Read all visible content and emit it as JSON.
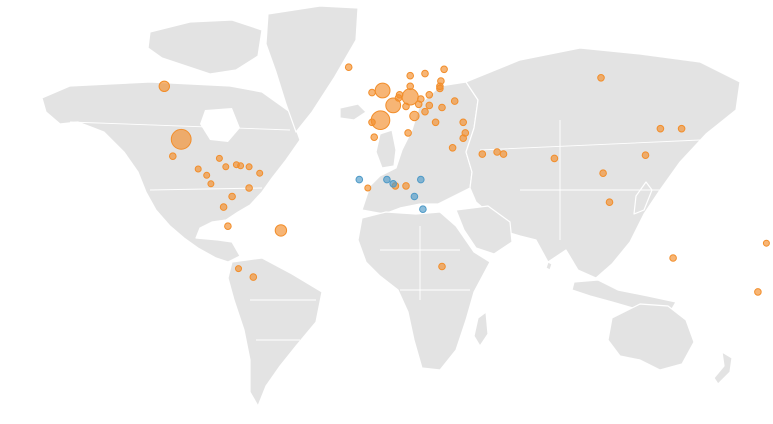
{
  "map": {
    "projection": "equirectangular",
    "background_color": "#ffffff",
    "land_color": "#e3e3e3",
    "border_color": "#ffffff"
  },
  "legend": {
    "series": [
      {
        "key": "orange",
        "color": "#f28e2b"
      },
      {
        "key": "blue",
        "color": "#4e9ac7"
      }
    ]
  },
  "chart_data": {
    "type": "bubble-map",
    "points": [
      {
        "lon": -98,
        "lat": 31,
        "size": 9,
        "series": "orange"
      },
      {
        "lon": -106,
        "lat": 56,
        "size": 2.5,
        "series": "orange"
      },
      {
        "lon": -102,
        "lat": 23,
        "size": 1,
        "series": "orange"
      },
      {
        "lon": -90,
        "lat": 17,
        "size": 0.8,
        "series": "orange"
      },
      {
        "lon": -86,
        "lat": 14,
        "size": 0.8,
        "series": "orange"
      },
      {
        "lon": -84,
        "lat": 10,
        "size": 0.8,
        "series": "orange"
      },
      {
        "lon": -80,
        "lat": 22,
        "size": 0.8,
        "series": "orange"
      },
      {
        "lon": -77,
        "lat": 18,
        "size": 0.8,
        "series": "orange"
      },
      {
        "lon": -72,
        "lat": 19,
        "size": 0.8,
        "series": "orange"
      },
      {
        "lon": -70,
        "lat": 18.5,
        "size": 0.8,
        "series": "orange"
      },
      {
        "lon": -66,
        "lat": 18,
        "size": 0.8,
        "series": "orange"
      },
      {
        "lon": -61,
        "lat": 15,
        "size": 0.8,
        "series": "orange"
      },
      {
        "lon": -74,
        "lat": 4,
        "size": 1,
        "series": "orange"
      },
      {
        "lon": -66,
        "lat": 8,
        "size": 1,
        "series": "orange"
      },
      {
        "lon": -78,
        "lat": -1,
        "size": 1,
        "series": "orange"
      },
      {
        "lon": -76,
        "lat": -10,
        "size": 1,
        "series": "orange"
      },
      {
        "lon": -51,
        "lat": -12,
        "size": 3,
        "series": "orange"
      },
      {
        "lon": -64,
        "lat": -34,
        "size": 1,
        "series": "orange"
      },
      {
        "lon": -71,
        "lat": -30,
        "size": 0.8,
        "series": "orange"
      },
      {
        "lon": -3,
        "lat": 54,
        "size": 5,
        "series": "orange"
      },
      {
        "lon": -8,
        "lat": 53,
        "size": 1,
        "series": "orange"
      },
      {
        "lon": 2,
        "lat": 47,
        "size": 5,
        "series": "orange"
      },
      {
        "lon": 10,
        "lat": 51,
        "size": 6,
        "series": "orange"
      },
      {
        "lon": -4,
        "lat": 40,
        "size": 8,
        "series": "orange"
      },
      {
        "lon": -8,
        "lat": 39,
        "size": 1,
        "series": "orange"
      },
      {
        "lon": 12,
        "lat": 42,
        "size": 2,
        "series": "orange"
      },
      {
        "lon": 5,
        "lat": 52,
        "size": 1,
        "series": "orange"
      },
      {
        "lon": 4.5,
        "lat": 50.5,
        "size": 1,
        "series": "orange"
      },
      {
        "lon": 8,
        "lat": 46.5,
        "size": 1,
        "series": "orange"
      },
      {
        "lon": 14,
        "lat": 47.5,
        "size": 1,
        "series": "orange"
      },
      {
        "lon": 19,
        "lat": 52,
        "size": 1,
        "series": "orange"
      },
      {
        "lon": 15,
        "lat": 50,
        "size": 1,
        "series": "orange"
      },
      {
        "lon": 19,
        "lat": 47,
        "size": 1,
        "series": "orange"
      },
      {
        "lon": 25,
        "lat": 46,
        "size": 1,
        "series": "orange"
      },
      {
        "lon": 22,
        "lat": 39,
        "size": 1,
        "series": "orange"
      },
      {
        "lon": 35,
        "lat": 39,
        "size": 1,
        "series": "orange"
      },
      {
        "lon": 31,
        "lat": 49,
        "size": 1,
        "series": "orange"
      },
      {
        "lon": 17,
        "lat": 44,
        "size": 1,
        "series": "orange"
      },
      {
        "lon": 10,
        "lat": 56,
        "size": 1,
        "series": "orange"
      },
      {
        "lon": 10,
        "lat": 61,
        "size": 1,
        "series": "orange"
      },
      {
        "lon": 17,
        "lat": 62,
        "size": 1,
        "series": "orange"
      },
      {
        "lon": 26,
        "lat": 64,
        "size": 1,
        "series": "orange"
      },
      {
        "lon": 24,
        "lat": 56,
        "size": 1,
        "series": "orange"
      },
      {
        "lon": 24.5,
        "lat": 58.5,
        "size": 1,
        "series": "orange"
      },
      {
        "lon": 24,
        "lat": 55,
        "size": 1,
        "series": "orange"
      },
      {
        "lon": -19,
        "lat": 65,
        "size": 1,
        "series": "orange"
      },
      {
        "lon": 9,
        "lat": 34,
        "size": 1,
        "series": "orange"
      },
      {
        "lon": -7,
        "lat": 32,
        "size": 1,
        "series": "orange"
      },
      {
        "lon": 30,
        "lat": 27,
        "size": 1,
        "series": "orange"
      },
      {
        "lon": 35,
        "lat": 31.5,
        "size": 1,
        "series": "orange"
      },
      {
        "lon": 36,
        "lat": 34,
        "size": 1,
        "series": "orange"
      },
      {
        "lon": 44,
        "lat": 24,
        "size": 1,
        "series": "orange"
      },
      {
        "lon": 51,
        "lat": 25,
        "size": 1,
        "series": "orange"
      },
      {
        "lon": 54,
        "lat": 24,
        "size": 1,
        "series": "orange"
      },
      {
        "lon": 78,
        "lat": 22,
        "size": 1,
        "series": "orange"
      },
      {
        "lon": 101,
        "lat": 15,
        "size": 1,
        "series": "orange"
      },
      {
        "lon": 104,
        "lat": 1.3,
        "size": 1,
        "series": "orange"
      },
      {
        "lon": 121,
        "lat": 23.5,
        "size": 1,
        "series": "orange"
      },
      {
        "lon": 128,
        "lat": 36,
        "size": 1,
        "series": "orange"
      },
      {
        "lon": 138,
        "lat": 36,
        "size": 1,
        "series": "orange"
      },
      {
        "lon": 100,
        "lat": 60,
        "size": 1,
        "series": "orange"
      },
      {
        "lon": 134,
        "lat": -25,
        "size": 1,
        "series": "orange"
      },
      {
        "lon": 174,
        "lat": -41,
        "size": 1,
        "series": "orange"
      },
      {
        "lon": 178,
        "lat": -18,
        "size": 0.8,
        "series": "orange"
      },
      {
        "lon": 25,
        "lat": -29,
        "size": 1,
        "series": "orange"
      },
      {
        "lon": -10,
        "lat": 8,
        "size": 0.8,
        "series": "orange"
      },
      {
        "lon": 3,
        "lat": 9,
        "size": 1,
        "series": "orange"
      },
      {
        "lon": 8,
        "lat": 9,
        "size": 1,
        "series": "orange"
      },
      {
        "lon": -14,
        "lat": 12,
        "size": 1,
        "series": "blue"
      },
      {
        "lon": -1,
        "lat": 12,
        "size": 1,
        "series": "blue"
      },
      {
        "lon": 2,
        "lat": 10,
        "size": 1,
        "series": "blue"
      },
      {
        "lon": 15,
        "lat": 12,
        "size": 1,
        "series": "blue"
      },
      {
        "lon": 12,
        "lat": 4,
        "size": 1,
        "series": "blue"
      },
      {
        "lon": 16,
        "lat": -2,
        "size": 1,
        "series": "blue"
      }
    ]
  }
}
